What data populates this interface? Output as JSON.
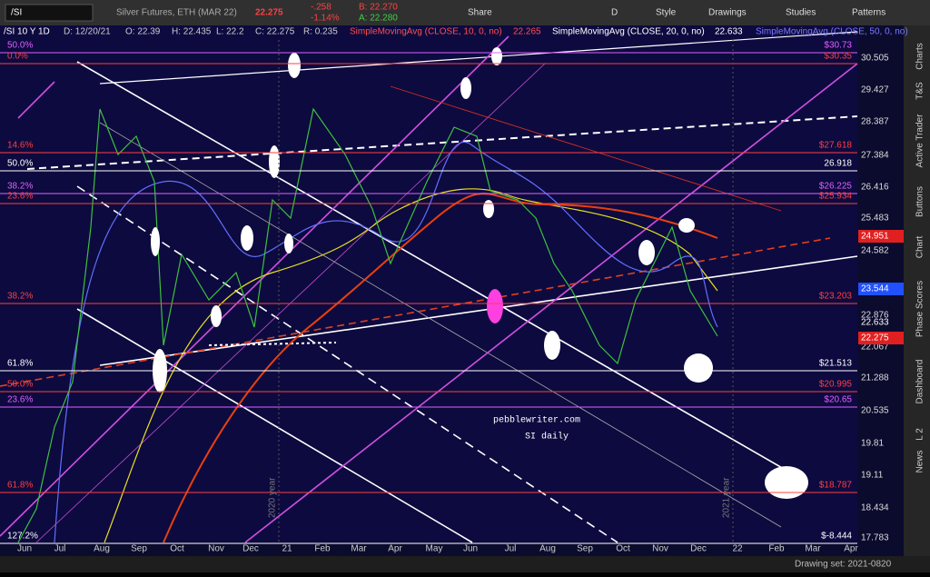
{
  "toolbar": {
    "symbol": "/SI",
    "description": "Silver Futures, ETH (MAR 22)",
    "last": "22.275",
    "change": "-.258",
    "change_pct": "-1.14%",
    "bid": "B: 22.270",
    "ask": "A: 22.280",
    "buttons": [
      "Share",
      "D",
      "Style",
      "Drawings",
      "Studies",
      "Patterns"
    ]
  },
  "header": [
    "/SI 10 Y 1D",
    "D: 12/20/21",
    "O: 22.39",
    "H: 22.435",
    "L: 22.2",
    "C: 22.275",
    "R: 0.235",
    "SimpleMovingAvg (CLOSE, 10, 0, no)",
    "22.265",
    "SimpleMovingAvg (CLOSE, 20, 0, no)",
    "22.633",
    "SimpleMovingAvg (CLOSE, 50, 0, no)"
  ],
  "price_axis": [
    "30.505",
    "29.427",
    "28.387",
    "27.384",
    "26.416",
    "25.483",
    "24.582",
    "22.876",
    "22.067",
    "21.288",
    "20.535",
    "19.81",
    "19.11",
    "18.434",
    "17.783"
  ],
  "badges": [
    "24.951",
    "23.544",
    "22.633",
    "22.275"
  ],
  "levels": [
    {
      "left": "50.0%",
      "right": "$30.73"
    },
    {
      "left": "0.0%",
      "right": "$30.35"
    },
    {
      "left": "14.6%",
      "right": "$27.618"
    },
    {
      "left": "50.0%",
      "right": "26.918"
    },
    {
      "left": "38.2%",
      "right": "$26.225"
    },
    {
      "left": "23.6%",
      "right": "$25.934"
    },
    {
      "left": "38.2%",
      "right": "$23.203"
    },
    {
      "left": "61.8%",
      "right": "$21.513"
    },
    {
      "left": "50.0%",
      "right": "$20.995"
    },
    {
      "left": "23.6%",
      "right": "$20.65"
    },
    {
      "left": "61.8%",
      "right": "$18.787"
    },
    {
      "left": "127.2%",
      "right": "$-8.444"
    }
  ],
  "months": [
    "Jun",
    "Jul",
    "Aug",
    "Sep",
    "Oct",
    "Nov",
    "Dec",
    "21",
    "Feb",
    "Mar",
    "Apr",
    "May",
    "Jun",
    "Jul",
    "Aug",
    "Sep",
    "Oct",
    "Nov",
    "Dec",
    "22",
    "Feb",
    "Mar",
    "Apr"
  ],
  "year_marks": [
    "2020 year",
    "2021 year"
  ],
  "annotation": [
    "pebblewriter.com",
    "SI daily"
  ],
  "side_tabs": [
    "Charts",
    "T&S",
    "Active Trader",
    "Buttons",
    "Chart",
    "Phase Scores",
    "Dashboard",
    "L 2",
    "News"
  ],
  "footer": "Drawing set: 2021-0820"
}
